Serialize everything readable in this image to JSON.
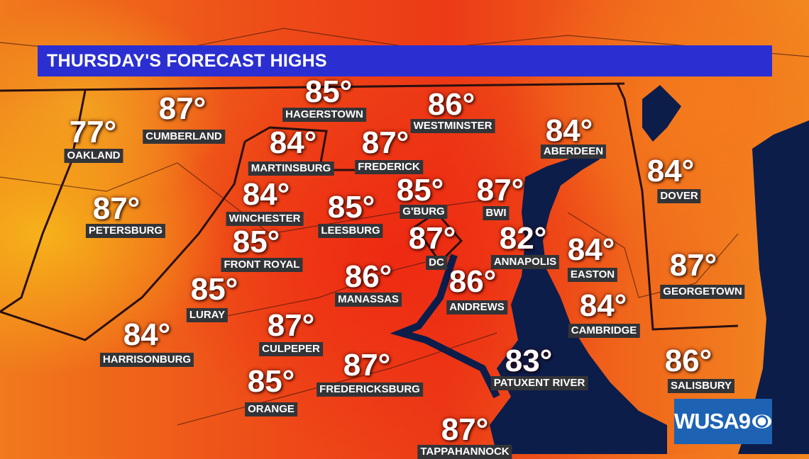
{
  "title": "THURSDAY'S FORECAST HIGHS",
  "logo": "WUSA9",
  "colors": {
    "title_bar": "#2b2fd2",
    "water": "#0c1d4a",
    "label_bg": "#333438",
    "logo_bg": "#1e62b4"
  },
  "cities": [
    {
      "name": "HAGERSTOWN",
      "temp": "85°"
    },
    {
      "name": "CUMBERLAND",
      "temp": "87°"
    },
    {
      "name": "OAKLAND",
      "temp": "77°"
    },
    {
      "name": "WESTMINSTER",
      "temp": "86°"
    },
    {
      "name": "MARTINSBURG",
      "temp": "84°"
    },
    {
      "name": "FREDERICK",
      "temp": "87°"
    },
    {
      "name": "ABERDEEN",
      "temp": "84°"
    },
    {
      "name": "DOVER",
      "temp": "84°"
    },
    {
      "name": "PETERSBURG",
      "temp": "87°"
    },
    {
      "name": "WINCHESTER",
      "temp": "84°"
    },
    {
      "name": "LEESBURG",
      "temp": "85°"
    },
    {
      "name": "G'BURG",
      "temp": "85°"
    },
    {
      "name": "BWI",
      "temp": "87°"
    },
    {
      "name": "DC",
      "temp": "87°"
    },
    {
      "name": "ANNAPOLIS",
      "temp": "82°"
    },
    {
      "name": "FRONT ROYAL",
      "temp": "85°"
    },
    {
      "name": "EASTON",
      "temp": "84°"
    },
    {
      "name": "GEORGETOWN",
      "temp": "87°"
    },
    {
      "name": "MANASSAS",
      "temp": "86°"
    },
    {
      "name": "ANDREWS",
      "temp": "86°"
    },
    {
      "name": "LURAY",
      "temp": "85°"
    },
    {
      "name": "CAMBRIDGE",
      "temp": "84°"
    },
    {
      "name": "CULPEPER",
      "temp": "87°"
    },
    {
      "name": "HARRISONBURG",
      "temp": "84°"
    },
    {
      "name": "FREDERICKSBURG",
      "temp": "87°"
    },
    {
      "name": "PATUXENT RIVER",
      "temp": "83°"
    },
    {
      "name": "SALISBURY",
      "temp": "86°"
    },
    {
      "name": "ORANGE",
      "temp": "85°"
    },
    {
      "name": "TAPPAHANNOCK",
      "temp": "87°"
    }
  ]
}
